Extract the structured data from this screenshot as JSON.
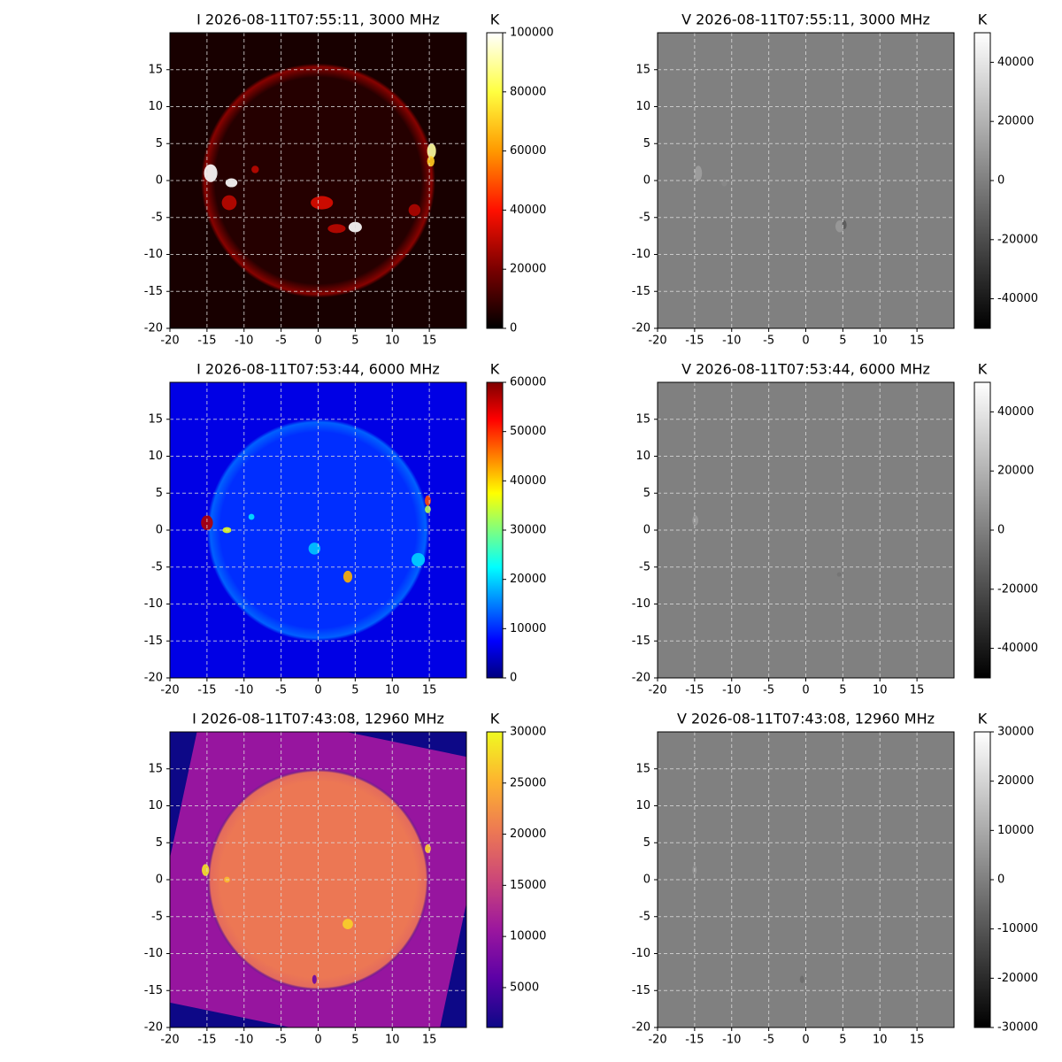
{
  "chart_data": [
    {
      "type": "image",
      "title": "I 2026-08-11T07:55:11, 3000 MHz",
      "xlim": [
        -20,
        20
      ],
      "ylim": [
        -20,
        20
      ],
      "xticks": [
        -20,
        -15,
        -10,
        -5,
        0,
        5,
        10,
        15
      ],
      "yticks": [
        -20,
        -15,
        -10,
        -5,
        0,
        5,
        10,
        15
      ],
      "grid": true,
      "colorbar": {
        "label": "K",
        "lim": [
          0,
          100000
        ],
        "ticks": [
          0,
          20000,
          40000,
          60000,
          80000,
          100000
        ],
        "cmap": [
          "#000000",
          "#7a0000",
          "#ff1000",
          "#ff9900",
          "#ffff40",
          "#ffffff"
        ]
      }
    },
    {
      "type": "image",
      "title": "V 2026-08-11T07:55:11, 3000 MHz",
      "xlim": [
        -20,
        20
      ],
      "ylim": [
        -20,
        20
      ],
      "xticks": [
        -20,
        -15,
        -10,
        -5,
        0,
        5,
        10,
        15
      ],
      "yticks": [
        -20,
        -15,
        -10,
        -5,
        0,
        5,
        10,
        15
      ],
      "grid": true,
      "colorbar": {
        "label": "K",
        "lim": [
          -50000,
          50000
        ],
        "ticks": [
          -40000,
          -20000,
          0,
          20000,
          40000
        ],
        "cmap": [
          "#000000",
          "#ffffff"
        ]
      }
    },
    {
      "type": "image",
      "title": "I 2026-08-11T07:53:44, 6000 MHz",
      "xlim": [
        -20,
        20
      ],
      "ylim": [
        -20,
        20
      ],
      "xticks": [
        -20,
        -15,
        -10,
        -5,
        0,
        5,
        10,
        15
      ],
      "yticks": [
        -20,
        -15,
        -10,
        -5,
        0,
        5,
        10,
        15
      ],
      "grid": true,
      "colorbar": {
        "label": "K",
        "lim": [
          0,
          60000
        ],
        "ticks": [
          0,
          10000,
          20000,
          30000,
          40000,
          50000,
          60000
        ],
        "cmap": [
          "#00007f",
          "#0000ff",
          "#007fff",
          "#00ffff",
          "#7fff7f",
          "#ffff00",
          "#ff7f00",
          "#ff0000",
          "#7f0000"
        ]
      }
    },
    {
      "type": "image",
      "title": "V 2026-08-11T07:53:44, 6000 MHz",
      "xlim": [
        -20,
        20
      ],
      "ylim": [
        -20,
        20
      ],
      "xticks": [
        -20,
        -15,
        -10,
        -5,
        0,
        5,
        10,
        15
      ],
      "yticks": [
        -20,
        -15,
        -10,
        -5,
        0,
        5,
        10,
        15
      ],
      "grid": true,
      "colorbar": {
        "label": "K",
        "lim": [
          -50000,
          50000
        ],
        "ticks": [
          -40000,
          -20000,
          0,
          20000,
          40000
        ],
        "cmap": [
          "#000000",
          "#ffffff"
        ]
      }
    },
    {
      "type": "image",
      "title": "I 2026-08-11T07:43:08, 12960 MHz",
      "xlim": [
        -20,
        20
      ],
      "ylim": [
        -20,
        20
      ],
      "xticks": [
        -20,
        -15,
        -10,
        -5,
        0,
        5,
        10,
        15
      ],
      "yticks": [
        -20,
        -15,
        -10,
        -5,
        0,
        5,
        10,
        15
      ],
      "grid": true,
      "colorbar": {
        "label": "K",
        "lim": [
          1100,
          30000
        ],
        "ticks": [
          5000,
          10000,
          15000,
          20000,
          25000,
          30000
        ],
        "cmap": [
          "#0d0887",
          "#5c01a6",
          "#9c179e",
          "#cc4778",
          "#ed7953",
          "#fdb42f",
          "#f0f921"
        ]
      }
    },
    {
      "type": "image",
      "title": "V 2026-08-11T07:43:08, 12960 MHz",
      "xlim": [
        -20,
        20
      ],
      "ylim": [
        -20,
        20
      ],
      "xticks": [
        -20,
        -15,
        -10,
        -5,
        0,
        5,
        10,
        15
      ],
      "yticks": [
        -20,
        -15,
        -10,
        -5,
        0,
        5,
        10,
        15
      ],
      "grid": true,
      "colorbar": {
        "label": "K",
        "lim": [
          -30000,
          30000
        ],
        "ticks": [
          -30000,
          -20000,
          -10000,
          0,
          10000,
          20000,
          30000
        ],
        "cmap": [
          "#000000",
          "#ffffff"
        ]
      }
    }
  ]
}
